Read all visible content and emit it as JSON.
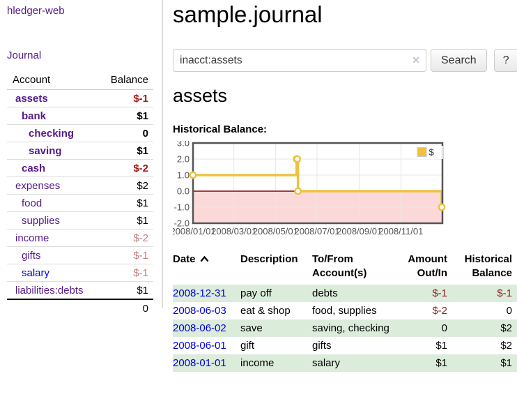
{
  "sidebar": {
    "brand": "hledger-web",
    "nav": [
      {
        "label": "Journal"
      }
    ],
    "accounts_table": {
      "headers": {
        "account": "Account",
        "balance": "Balance"
      },
      "rows": [
        {
          "name": "assets",
          "indent": 1,
          "bold": true,
          "balance": "$-1",
          "balance_class": "neg-strong"
        },
        {
          "name": "bank",
          "indent": 2,
          "bold": true,
          "balance": "$1",
          "balance_class": "pos-strong"
        },
        {
          "name": "checking",
          "indent": 3,
          "bold": true,
          "balance": "0",
          "balance_class": "pos-strong"
        },
        {
          "name": "saving",
          "indent": 3,
          "bold": true,
          "balance": "$1",
          "balance_class": "pos-strong"
        },
        {
          "name": "cash",
          "indent": 2,
          "bold": true,
          "balance": "$-2",
          "balance_class": "neg-strong"
        },
        {
          "name": "expenses",
          "indent": 1,
          "bold": false,
          "balance": "$2",
          "balance_class": "pos"
        },
        {
          "name": "food",
          "indent": 2,
          "bold": false,
          "balance": "$1",
          "balance_class": "pos"
        },
        {
          "name": "supplies",
          "indent": 2,
          "bold": false,
          "balance": "$1",
          "balance_class": "pos"
        },
        {
          "name": "income",
          "indent": 1,
          "bold": false,
          "balance": "$-2",
          "balance_class": "neg-dim"
        },
        {
          "name": "gifts",
          "indent": 2,
          "bold": false,
          "balance": "$-1",
          "balance_class": "neg-dim"
        },
        {
          "name": "salary",
          "indent": 2,
          "bold": false,
          "link_color": "blue",
          "balance": "$-1",
          "balance_class": "neg-dim"
        },
        {
          "name": "liabilities:debts",
          "indent": 1,
          "bold": false,
          "balance": "$1",
          "balance_class": "pos"
        }
      ],
      "total": "0"
    }
  },
  "main": {
    "title": "sample.journal",
    "search": {
      "value": "inacct:assets",
      "clear_icon": "✕",
      "button": "Search",
      "help_button": "?"
    },
    "account_heading": "assets",
    "chart_label": "Historical Balance:",
    "register_table": {
      "headers": [
        {
          "label": "Date",
          "sorted": "ascending"
        },
        {
          "label": "Description"
        },
        {
          "label": "To/From Account(s)"
        },
        {
          "label": "Amount Out/In"
        },
        {
          "label": "Historical Balance"
        }
      ],
      "rows": [
        {
          "date": "2008-12-31",
          "description": "pay off",
          "accounts": "debts",
          "amount": "$-1",
          "amount_class": "neg",
          "balance": "$-1",
          "balance_class": "neg"
        },
        {
          "date": "2008-06-03",
          "description": "eat & shop",
          "accounts": "food, supplies",
          "amount": "$-2",
          "amount_class": "neg",
          "balance": "0",
          "balance_class": ""
        },
        {
          "date": "2008-06-02",
          "description": "save",
          "accounts": "saving, checking",
          "amount": "0",
          "amount_class": "",
          "balance": "$2",
          "balance_class": ""
        },
        {
          "date": "2008-06-01",
          "description": "gift",
          "accounts": "gifts",
          "amount": "$1",
          "amount_class": "",
          "balance": "$2",
          "balance_class": ""
        },
        {
          "date": "2008-01-01",
          "description": "income",
          "accounts": "salary",
          "amount": "$1",
          "amount_class": "",
          "balance": "$1",
          "balance_class": ""
        }
      ]
    }
  },
  "chart_data": {
    "type": "line",
    "step": true,
    "title": "Historical Balance:",
    "series": [
      {
        "name": "$",
        "color": "#edc240",
        "points": [
          {
            "date": "2008-01-01",
            "day": 0,
            "value": 1
          },
          {
            "date": "2008-06-01",
            "day": 152,
            "value": 2
          },
          {
            "date": "2008-06-02",
            "day": 153,
            "value": 2
          },
          {
            "date": "2008-06-03",
            "day": 154,
            "value": 0
          },
          {
            "date": "2008-12-31",
            "day": 365,
            "value": -1
          }
        ]
      }
    ],
    "x_range_days": [
      0,
      366
    ],
    "x_ticks": [
      {
        "day": 0,
        "label": "2008/01/01"
      },
      {
        "day": 60,
        "label": "2008/03/01"
      },
      {
        "day": 121,
        "label": "2008/05/01"
      },
      {
        "day": 182,
        "label": "2008/07/01"
      },
      {
        "day": 244,
        "label": "2008/09/01"
      },
      {
        "day": 305,
        "label": "2008/11/01"
      }
    ],
    "y_ticks": [
      {
        "v": 3,
        "label": "3.0"
      },
      {
        "v": 2,
        "label": "2.0"
      },
      {
        "v": 1,
        "label": "1.0"
      },
      {
        "v": 0,
        "label": "0.0"
      },
      {
        "v": -1,
        "label": "-1.0"
      },
      {
        "v": -2,
        "label": "-2.0"
      }
    ],
    "ylim": [
      -2,
      3
    ],
    "grid": true,
    "negative_region_color": "#fbd9d9",
    "zero_line_color": "#8b0000",
    "axis_label_color": "#545454",
    "plot_border_color": "#545454",
    "legend": {
      "label": "$",
      "position": "top-right"
    }
  }
}
